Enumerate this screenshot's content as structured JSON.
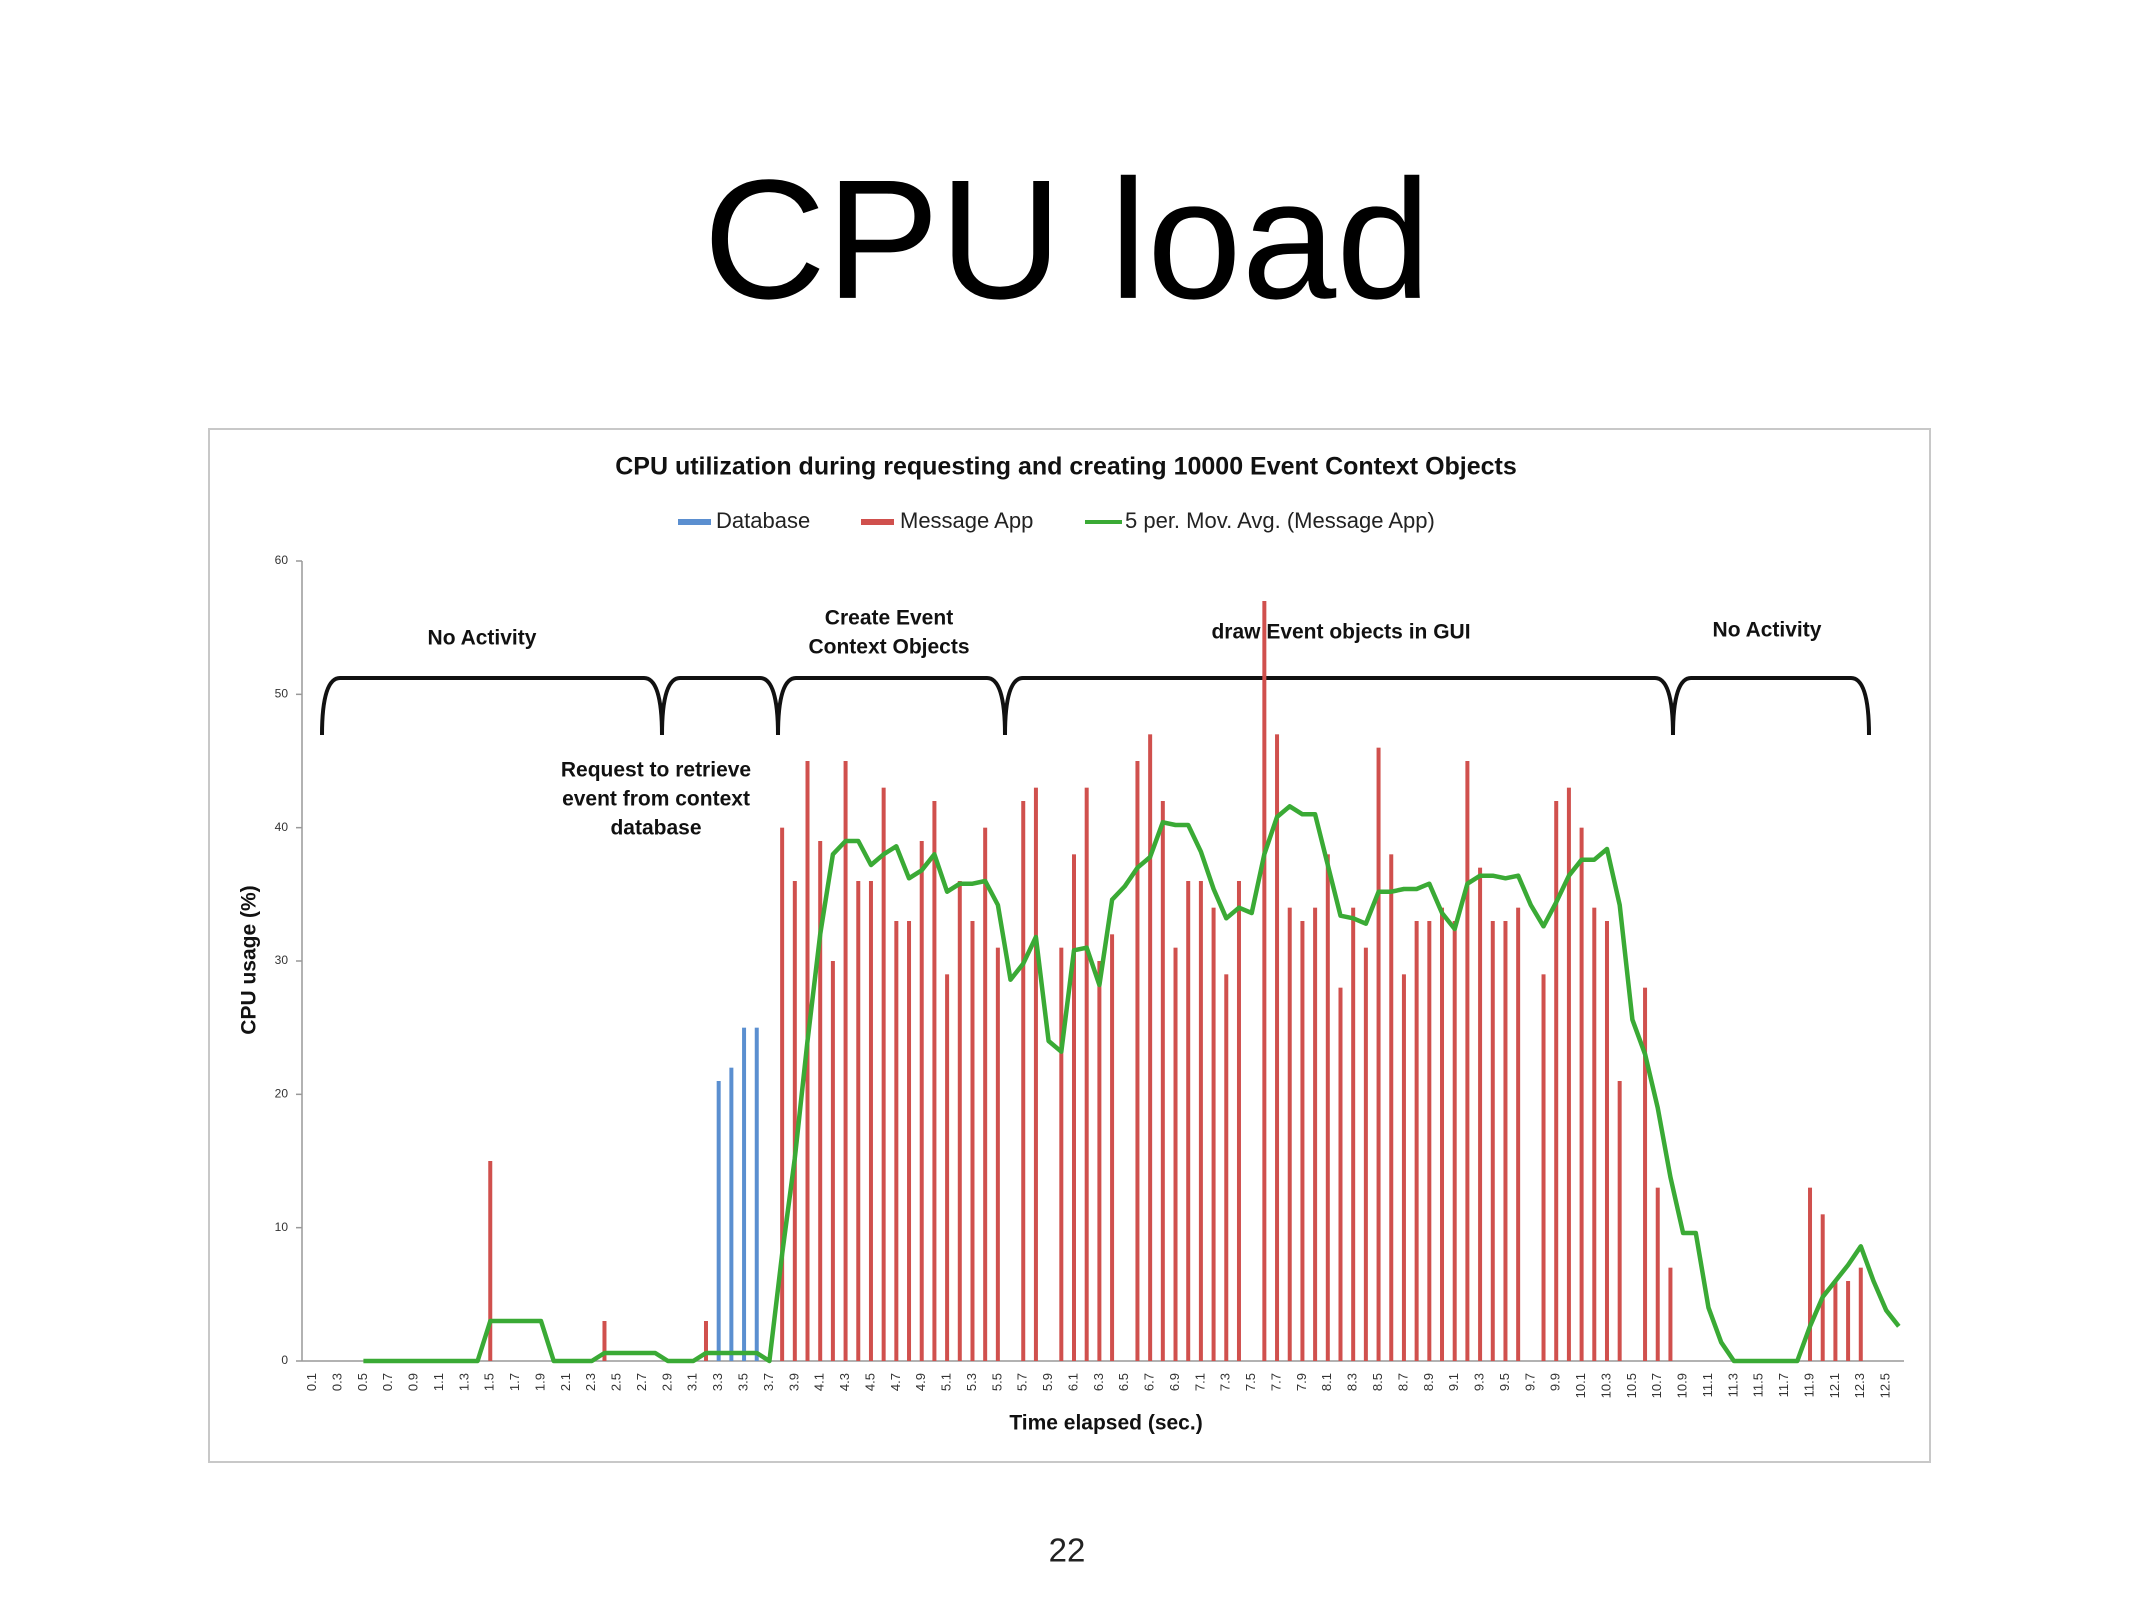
{
  "slide_title": "CPU load",
  "page_number": "22",
  "chart_data": {
    "type": "bar_line",
    "title": "CPU utilization during requesting and creating 10000 Event Context Objects",
    "x_label": "Time elapsed (sec.)",
    "y_label": "CPU usage (%)",
    "legend": "top",
    "grid": false,
    "ylim": [
      0,
      60
    ],
    "yticks": [
      0,
      10,
      20,
      30,
      40,
      50,
      60
    ],
    "categories": [
      "0.1",
      null,
      "0.3",
      null,
      "0.5",
      null,
      "0.7",
      null,
      "0.9",
      null,
      "1.1",
      null,
      "1.3",
      null,
      "1.5",
      null,
      "1.7",
      null,
      "1.9",
      null,
      "2.1",
      null,
      "2.3",
      null,
      "2.5",
      null,
      "2.7",
      null,
      "2.9",
      null,
      "3.1",
      null,
      "3.3",
      null,
      "3.5",
      null,
      "3.7",
      null,
      "3.9",
      null,
      "4.1",
      null,
      "4.3",
      null,
      "4.5",
      null,
      "4.7",
      null,
      "4.9",
      null,
      "5.1",
      null,
      "5.3",
      null,
      "5.5",
      null,
      "5.7",
      null,
      "5.9",
      null,
      "6.1",
      null,
      "6.3",
      null,
      "6.5",
      null,
      "6.7",
      null,
      "6.9",
      null,
      "7.1",
      null,
      "7.3",
      null,
      "7.5",
      null,
      "7.7",
      null,
      "7.9",
      null,
      "8.1",
      null,
      "8.3",
      null,
      "8.5",
      null,
      "8.7",
      null,
      "8.9",
      null,
      "9.1",
      null,
      "9.3",
      null,
      "9.5",
      null,
      "9.7",
      null,
      "9.9",
      null,
      "10.1",
      null,
      "10.3",
      null,
      "10.5",
      null,
      "10.7",
      null,
      "10.9",
      null,
      "11.1",
      null,
      "11.3",
      null,
      "11.5",
      null,
      "11.7",
      null,
      "11.9",
      null,
      "12.1",
      null,
      "12.3",
      null,
      "12.5",
      null
    ],
    "series": [
      {
        "name": "Database",
        "kind": "bar",
        "color": "#5b8fd0",
        "values": [
          null,
          null,
          null,
          null,
          null,
          null,
          null,
          null,
          null,
          null,
          null,
          null,
          null,
          null,
          null,
          null,
          null,
          null,
          null,
          null,
          null,
          null,
          null,
          null,
          null,
          null,
          null,
          null,
          null,
          null,
          null,
          null,
          21,
          22,
          25,
          25,
          null,
          null,
          null,
          null,
          null,
          null,
          null,
          null,
          null,
          null,
          null,
          null,
          null,
          null,
          null,
          null,
          null,
          null,
          null,
          null,
          null,
          null,
          null,
          null,
          null,
          null,
          null,
          null,
          null,
          null,
          null,
          null,
          null,
          null,
          null,
          null,
          null,
          null,
          null,
          null,
          null,
          null,
          null,
          null,
          null,
          null,
          null,
          null,
          null,
          null,
          null,
          null,
          null,
          null,
          null,
          null,
          null,
          null,
          null,
          null,
          null,
          null,
          null,
          null,
          null,
          null,
          null,
          null,
          null,
          null,
          null,
          null,
          null,
          null,
          null,
          null,
          null,
          null,
          null,
          null,
          null,
          null,
          null,
          null,
          null,
          null,
          null,
          null,
          null,
          null
        ]
      },
      {
        "name": "Message App",
        "kind": "bar",
        "color": "#d0504d",
        "values": [
          0,
          0,
          0,
          0,
          0,
          0,
          0,
          0,
          0,
          0,
          0,
          0,
          0,
          0,
          15,
          0,
          0,
          0,
          0,
          0,
          0,
          0,
          0,
          3,
          0,
          0,
          0,
          0,
          0,
          0,
          0,
          3,
          0,
          0,
          0,
          0,
          0,
          40,
          36,
          45,
          39,
          30,
          45,
          36,
          36,
          43,
          33,
          33,
          39,
          42,
          29,
          36,
          33,
          40,
          31,
          0,
          42,
          43,
          0,
          31,
          38,
          43,
          30,
          32,
          0,
          45,
          47,
          42,
          31,
          36,
          36,
          34,
          29,
          36,
          0,
          57,
          47,
          34,
          33,
          34,
          38,
          28,
          34,
          31,
          46,
          38,
          29,
          33,
          33,
          34,
          33,
          45,
          37,
          33,
          33,
          34,
          0,
          29,
          42,
          43,
          40,
          34,
          33,
          21,
          0,
          28,
          13,
          7,
          0,
          0,
          0,
          0,
          0,
          0,
          0,
          0,
          0,
          0,
          13,
          11,
          6,
          6,
          7,
          0,
          0,
          0
        ]
      },
      {
        "name": "5 per. Mov. Avg. (Message App)",
        "kind": "line",
        "color": "#3aaa35",
        "values": [
          null,
          null,
          null,
          null,
          0,
          0,
          0,
          0,
          0,
          0,
          0,
          0,
          0,
          0,
          3,
          3,
          3,
          3,
          3,
          0,
          0,
          0,
          0,
          0.6,
          0.6,
          0.6,
          0.6,
          0.6,
          0,
          0,
          0,
          0.6,
          0.6,
          0.6,
          0.6,
          0.6,
          0,
          8,
          15.2,
          24,
          32,
          38,
          39,
          39,
          37.2,
          38,
          38.6,
          36.2,
          36.8,
          38,
          35.2,
          35.8,
          35.8,
          36,
          34.2,
          28.6,
          29.8,
          31.8,
          24,
          23.2,
          30.8,
          31,
          28.2,
          34.6,
          35.6,
          37,
          37.8,
          40.4,
          40.2,
          40.2,
          38.2,
          35.4,
          33.2,
          34,
          33.6,
          38,
          40.8,
          41.6,
          41,
          41,
          37.2,
          33.4,
          33.2,
          32.8,
          35.2,
          35.2,
          35.4,
          35.4,
          35.8,
          33.6,
          32.4,
          35.8,
          36.4,
          36.4,
          36.2,
          36.4,
          34.2,
          32.6,
          34.4,
          36.4,
          37.6,
          37.6,
          38.4,
          34.2,
          25.6,
          23,
          19,
          13.8,
          9.6,
          9.6,
          4,
          1.4,
          0,
          0,
          0,
          0,
          0,
          0,
          2.6,
          4.8,
          6,
          7.2,
          8.6,
          6,
          3.8,
          2.6
        ]
      }
    ],
    "annotations": [
      {
        "text": [
          "No Activity"
        ]
      },
      {
        "text": [
          "Request to retrieve",
          "event from context",
          "database"
        ]
      },
      {
        "text": [
          "Create Event",
          "Context Objects"
        ]
      },
      {
        "text": [
          "draw Event objects in GUI"
        ]
      },
      {
        "text": [
          "No Activity"
        ]
      }
    ]
  }
}
